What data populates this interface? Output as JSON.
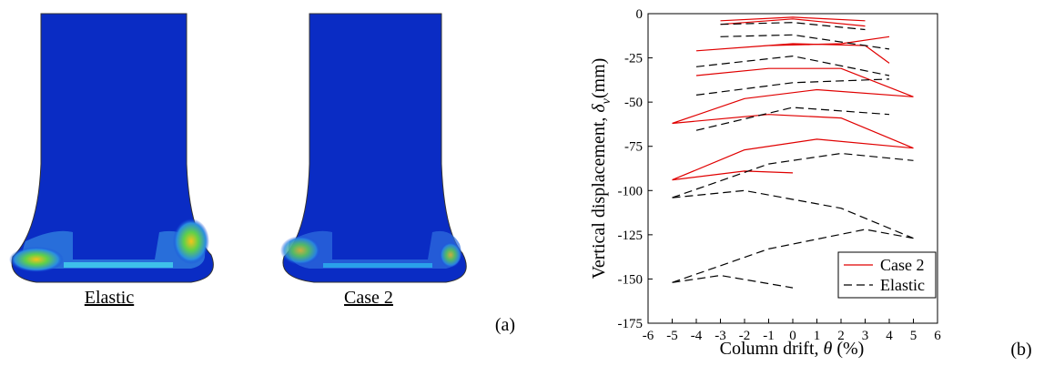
{
  "figure": {
    "images": [
      {
        "label": "Elastic"
      },
      {
        "label": "Case 2"
      }
    ],
    "panel_labels": [
      "(a)",
      "(b)"
    ]
  },
  "chart_data": {
    "type": "line",
    "xlabel": {
      "text": "Column drift,",
      "symbol": "θ",
      "unit": "(%)"
    },
    "ylabel": {
      "text": "Vertical displacement,",
      "symbol": "δ",
      "subscript": "v",
      "unit": "(mm)"
    },
    "xlim": [
      -6,
      6
    ],
    "xticks": [
      -6,
      -5,
      -4,
      -3,
      -2,
      -1,
      0,
      1,
      2,
      3,
      4,
      5,
      6
    ],
    "ylim": [
      -175,
      0
    ],
    "yticks": [
      0,
      -25,
      -50,
      -75,
      -100,
      -125,
      -150,
      -175
    ],
    "grid": false,
    "legend": "lower right",
    "series": [
      {
        "name": "Case 2",
        "color": "#e00000",
        "dash": false,
        "x": [
          -3,
          0,
          3,
          null,
          -3,
          0,
          3,
          null,
          -4,
          -1,
          2,
          4,
          null,
          -4,
          0,
          3,
          4,
          null,
          -4,
          -1,
          2,
          5,
          null,
          -5,
          -2,
          1,
          5,
          null,
          -5,
          -1,
          2,
          5,
          null,
          -5,
          -2,
          1,
          5,
          null,
          -5,
          -2,
          0
        ],
        "values": [
          -6,
          -3,
          -7,
          null,
          -4,
          -2,
          -4,
          null,
          -21,
          -18,
          -17,
          -13,
          null,
          -21,
          -17,
          -18,
          -28,
          null,
          -35,
          -31,
          -31,
          -47,
          null,
          -62,
          -48,
          -43,
          -47,
          null,
          -62,
          -57,
          -59,
          -76,
          null,
          -94,
          -77,
          -71,
          -76,
          null,
          -94,
          -89,
          -90
        ]
      },
      {
        "name": "Elastic",
        "color": "#000000",
        "dash": true,
        "x": [
          -3,
          0,
          3,
          null,
          -3,
          0,
          4,
          null,
          -4,
          0,
          4,
          null,
          -4,
          0,
          4,
          null,
          -4,
          0,
          4,
          null,
          -5,
          -1,
          2,
          5,
          null,
          -5,
          -2,
          2,
          5,
          null,
          -5,
          -1,
          3,
          5,
          null,
          -5,
          -3,
          0
        ],
        "values": [
          -6,
          -5,
          -9,
          null,
          -13,
          -12,
          -20,
          null,
          -30,
          -24,
          -35,
          null,
          -46,
          -39,
          -37,
          null,
          -66,
          -53,
          -57,
          null,
          -104,
          -85,
          -79,
          -83,
          null,
          -104,
          -100,
          -110,
          -127,
          null,
          -152,
          -133,
          -122,
          -127,
          null,
          -152,
          -148,
          -155
        ]
      }
    ]
  }
}
